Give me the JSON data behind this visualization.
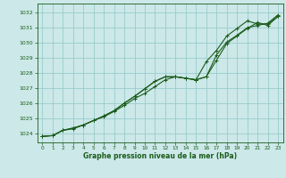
{
  "bg_color": "#cce8e8",
  "grid_color": "#99cccc",
  "line_color": "#1a5c1a",
  "xlabel": "Graphe pression niveau de la mer (hPa)",
  "ylim": [
    1023.4,
    1032.6
  ],
  "xlim": [
    -0.5,
    23.5
  ],
  "yticks": [
    1024,
    1025,
    1026,
    1027,
    1028,
    1029,
    1030,
    1031,
    1032
  ],
  "xticks": [
    0,
    1,
    2,
    3,
    4,
    5,
    6,
    7,
    8,
    9,
    10,
    11,
    12,
    13,
    14,
    15,
    16,
    17,
    18,
    19,
    20,
    21,
    22,
    23
  ],
  "series1": [
    1023.8,
    1023.85,
    1024.2,
    1024.3,
    1024.55,
    1024.85,
    1025.1,
    1025.45,
    1025.85,
    1026.3,
    1026.65,
    1027.1,
    1027.55,
    1027.75,
    1027.65,
    1027.55,
    1027.75,
    1028.85,
    1029.95,
    1030.45,
    1030.95,
    1031.35,
    1031.15,
    1031.75
  ],
  "series2": [
    1023.8,
    1023.85,
    1024.2,
    1024.35,
    1024.55,
    1024.85,
    1025.15,
    1025.5,
    1026.0,
    1026.45,
    1026.95,
    1027.45,
    1027.75,
    1027.75,
    1027.65,
    1027.55,
    1028.75,
    1029.5,
    1030.45,
    1030.95,
    1031.45,
    1031.25,
    1031.25,
    1031.75
  ],
  "series3": [
    1023.8,
    1023.85,
    1024.2,
    1024.35,
    1024.55,
    1024.85,
    1025.15,
    1025.5,
    1026.0,
    1026.45,
    1026.95,
    1027.45,
    1027.75,
    1027.75,
    1027.65,
    1027.55,
    1027.75,
    1029.2,
    1030.05,
    1030.5,
    1031.0,
    1031.15,
    1031.3,
    1031.85
  ]
}
